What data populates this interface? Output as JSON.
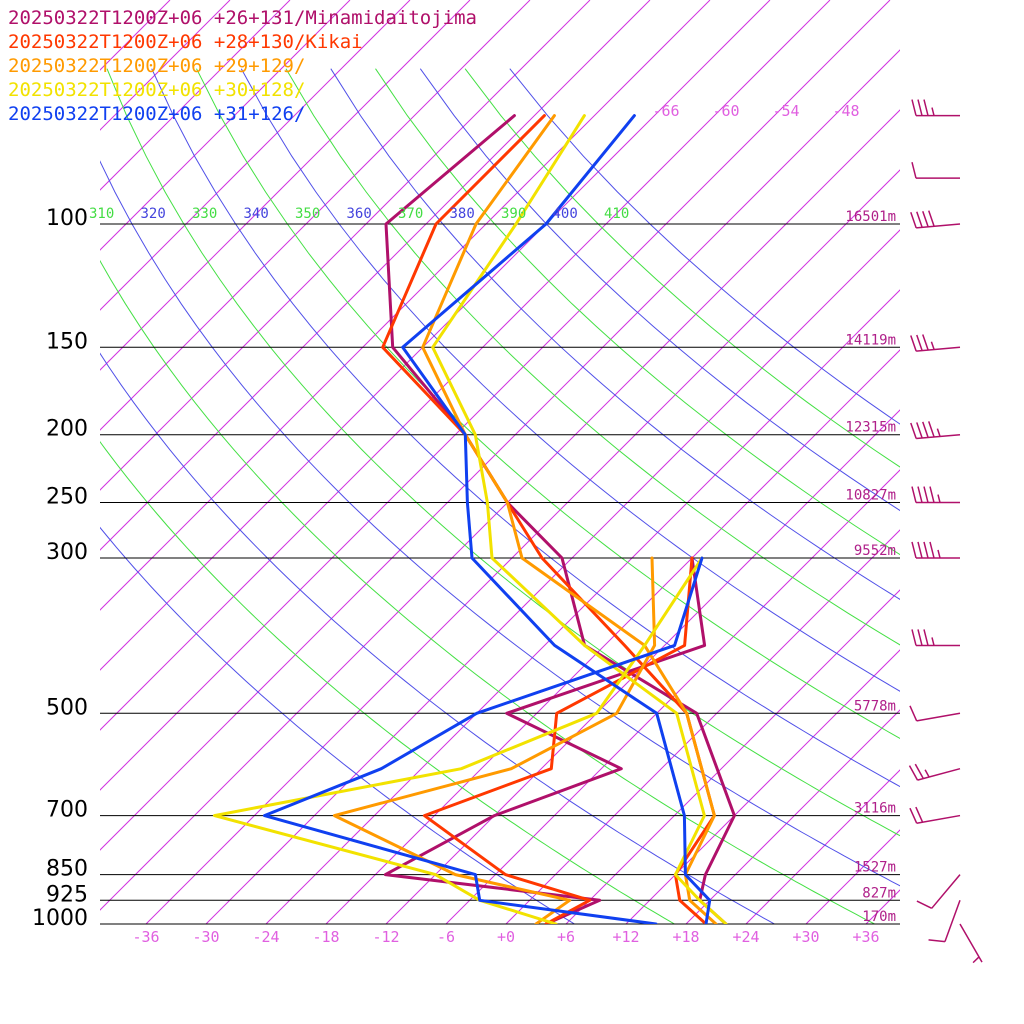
{
  "legend": [
    {
      "text": "20250322T1200Z+06 +26+131/Minamidaitojima",
      "color": "#b0106a"
    },
    {
      "text": "20250322T1200Z+06 +28+130/Kikai",
      "color": "#ff3800"
    },
    {
      "text": "20250322T1200Z+06 +29+129/",
      "color": "#ff9a00"
    },
    {
      "text": "20250322T1200Z+06 +30+128/",
      "color": "#f2e200"
    },
    {
      "text": "20250322T1200Z+06 +31+126/",
      "color": "#1040f0"
    }
  ],
  "chart_data": {
    "type": "line",
    "diagram": "skew-T log-p",
    "pressure_labels": [
      "100",
      "150",
      "200",
      "250",
      "300",
      "500",
      "700",
      "850",
      "925",
      "1000"
    ],
    "pressure_levels": [
      100,
      150,
      200,
      250,
      300,
      500,
      700,
      850,
      925,
      1000
    ],
    "height_labels": [
      "16501m",
      "14119m",
      "12315m",
      "10827m",
      "9552m",
      "5778m",
      "3116m",
      "1527m",
      "827m",
      "170m"
    ],
    "height_levels": [
      100,
      150,
      200,
      250,
      300,
      500,
      700,
      850,
      925,
      1000
    ],
    "temp_tick_labels": [
      "-36",
      "-30",
      "-24",
      "-18",
      "-12",
      "-6",
      "+0",
      "+6",
      "+12",
      "+18",
      "+24",
      "+30",
      "+36"
    ],
    "temp_tick_values": [
      -36,
      -30,
      -24,
      -18,
      -12,
      -6,
      0,
      6,
      12,
      18,
      24,
      30,
      36
    ],
    "isotherm_top_labels": [
      "-66",
      "-60",
      "-54",
      "-48"
    ],
    "theta_labels": [
      {
        "text": "310",
        "color": "#44dd44"
      },
      {
        "text": "320",
        "color": "#4444dd"
      },
      {
        "text": "330",
        "color": "#44dd44"
      },
      {
        "text": "340",
        "color": "#4444dd"
      },
      {
        "text": "350",
        "color": "#44dd44"
      },
      {
        "text": "360",
        "color": "#4444dd"
      },
      {
        "text": "370",
        "color": "#44dd44"
      },
      {
        "text": "380",
        "color": "#4444dd"
      },
      {
        "text": "390",
        "color": "#44dd44"
      },
      {
        "text": "400",
        "color": "#4444dd"
      },
      {
        "text": "410",
        "color": "#44dd44"
      }
    ],
    "xlim": [
      -40,
      40
    ],
    "series": [
      {
        "name": "20250322T1200Z+06 +26+131/Minamidaitojima",
        "color": "#b0106a",
        "temperature": [
          [
            1000,
            22
          ],
          [
            925,
            17
          ],
          [
            850,
            15
          ],
          [
            700,
            12
          ],
          [
            500,
            -2
          ],
          [
            400,
            -20
          ],
          [
            300,
            -31
          ],
          [
            250,
            -42
          ],
          [
            200,
            -53
          ],
          [
            150,
            -69
          ],
          [
            100,
            -82
          ],
          [
            70,
            -80
          ]
        ],
        "dewpoint": [
          [
            1000,
            4
          ],
          [
            925,
            7
          ],
          [
            850,
            -17
          ],
          [
            700,
            -12
          ],
          [
            600,
            -4
          ],
          [
            500,
            -21
          ],
          [
            400,
            -8
          ],
          [
            300,
            -18
          ]
        ]
      },
      {
        "name": "20250322T1200Z+06 +28+130/Kikai",
        "color": "#ff3800",
        "temperature": [
          [
            1000,
            20
          ],
          [
            925,
            15
          ],
          [
            850,
            12
          ],
          [
            700,
            10
          ],
          [
            500,
            -3
          ],
          [
            400,
            -16
          ],
          [
            300,
            -33
          ],
          [
            250,
            -42
          ],
          [
            200,
            -53
          ],
          [
            150,
            -70
          ],
          [
            100,
            -77
          ],
          [
            70,
            -77
          ]
        ],
        "dewpoint": [
          [
            1000,
            4
          ],
          [
            925,
            6
          ],
          [
            850,
            -5
          ],
          [
            700,
            -19
          ],
          [
            600,
            -11
          ],
          [
            500,
            -16
          ],
          [
            400,
            -10
          ],
          [
            300,
            -18
          ]
        ]
      },
      {
        "name": "20250322T1200Z+06 +29+129/",
        "color": "#ff9a00",
        "temperature": [
          [
            1000,
            21
          ],
          [
            925,
            16
          ],
          [
            850,
            13
          ],
          [
            700,
            10
          ],
          [
            500,
            -3
          ],
          [
            400,
            -14
          ],
          [
            300,
            -35
          ],
          [
            250,
            -42
          ],
          [
            200,
            -53
          ],
          [
            150,
            -66
          ],
          [
            100,
            -73
          ],
          [
            70,
            -76
          ]
        ],
        "dewpoint": [
          [
            1000,
            3
          ],
          [
            925,
            4
          ],
          [
            850,
            -10
          ],
          [
            700,
            -28
          ],
          [
            600,
            -15
          ],
          [
            500,
            -10
          ],
          [
            400,
            -13
          ],
          [
            300,
            -22
          ]
        ]
      },
      {
        "name": "20250322T1200Z+06 +30+128/",
        "color": "#f2e200",
        "temperature": [
          [
            1000,
            22
          ],
          [
            925,
            17
          ],
          [
            850,
            12
          ],
          [
            700,
            9
          ],
          [
            500,
            -4
          ],
          [
            400,
            -20
          ],
          [
            300,
            -38
          ],
          [
            250,
            -44
          ],
          [
            200,
            -52
          ],
          [
            150,
            -65
          ],
          [
            100,
            -69
          ],
          [
            70,
            -73
          ]
        ],
        "dewpoint": [
          [
            1000,
            5
          ],
          [
            925,
            -5
          ],
          [
            850,
            -12
          ],
          [
            700,
            -40
          ],
          [
            600,
            -20
          ],
          [
            500,
            -12
          ],
          [
            400,
            -14
          ],
          [
            300,
            -17
          ]
        ]
      },
      {
        "name": "20250322T1200Z+06 +31+126/",
        "color": "#1040f0",
        "temperature": [
          [
            1000,
            20
          ],
          [
            925,
            18
          ],
          [
            850,
            13
          ],
          [
            700,
            7
          ],
          [
            500,
            -6
          ],
          [
            400,
            -23
          ],
          [
            300,
            -40
          ],
          [
            250,
            -46
          ],
          [
            200,
            -53
          ],
          [
            150,
            -68
          ],
          [
            100,
            -66
          ],
          [
            70,
            -68
          ]
        ],
        "dewpoint": [
          [
            1000,
            15
          ],
          [
            925,
            -5
          ],
          [
            850,
            -8
          ],
          [
            700,
            -35
          ],
          [
            600,
            -28
          ],
          [
            500,
            -24
          ],
          [
            400,
            -11
          ],
          [
            300,
            -17
          ]
        ]
      }
    ],
    "wind_barbs": [
      {
        "p": 70,
        "speed": 35,
        "dir": 270
      },
      {
        "p": 86,
        "speed": 10,
        "dir": 270
      },
      {
        "p": 100,
        "speed": 40,
        "dir": 265
      },
      {
        "p": 150,
        "speed": 35,
        "dir": 265
      },
      {
        "p": 200,
        "speed": 45,
        "dir": 265
      },
      {
        "p": 250,
        "speed": 45,
        "dir": 270
      },
      {
        "p": 300,
        "speed": 45,
        "dir": 270
      },
      {
        "p": 400,
        "speed": 35,
        "dir": 270
      },
      {
        "p": 500,
        "speed": 10,
        "dir": 260
      },
      {
        "p": 600,
        "speed": 25,
        "dir": 255
      },
      {
        "p": 700,
        "speed": 20,
        "dir": 260
      },
      {
        "p": 850,
        "speed": 10,
        "dir": 220
      },
      {
        "p": 925,
        "speed": 10,
        "dir": 200
      },
      {
        "p": 1000,
        "speed": 5,
        "dir": 150
      }
    ]
  }
}
